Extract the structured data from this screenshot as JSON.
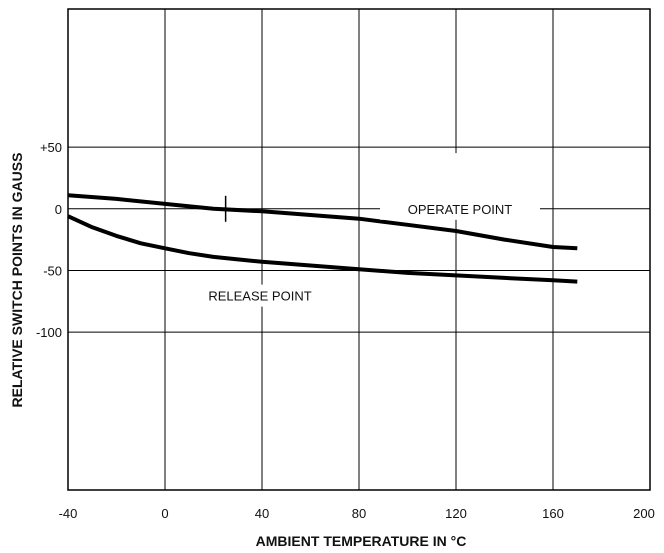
{
  "chart_data": {
    "type": "line",
    "title": "",
    "xlabel": "AMBIENT TEMPERATURE IN °C",
    "ylabel": "RELATIVE SWITCH POINTS IN GAUSS",
    "xlim": [
      -40,
      200
    ],
    "ylim": [
      -228,
      162
    ],
    "grid": true,
    "x_ticks": [
      -40,
      0,
      40,
      80,
      120,
      160,
      200
    ],
    "x_tick_labels": [
      "-40",
      "0",
      "40",
      "80",
      "120",
      "160",
      "200"
    ],
    "y_ticks": [
      50,
      0,
      -50,
      -100
    ],
    "y_tick_labels": [
      "+50",
      "0",
      "-50",
      "-100"
    ],
    "series": [
      {
        "name": "OPERATE POINT",
        "x": [
          -40,
          -20,
          0,
          20,
          40,
          60,
          80,
          100,
          120,
          140,
          160,
          170
        ],
        "y": [
          11,
          8,
          4,
          0,
          -2,
          -5,
          -8,
          -13,
          -18,
          -25,
          -31,
          -32
        ]
      },
      {
        "name": "RELEASE POINT",
        "x": [
          -40,
          -30,
          -20,
          -10,
          0,
          10,
          20,
          30,
          40,
          60,
          80,
          100,
          120,
          140,
          160,
          170
        ],
        "y": [
          -6,
          -15,
          -22,
          -28,
          -32,
          -36,
          -39,
          -41,
          -43,
          -46,
          -49,
          -52,
          -54,
          -56,
          -58,
          -59
        ]
      }
    ],
    "annotations": {
      "operate_label": "OPERATE POINT",
      "release_label": "RELEASE POINT",
      "marker_x": 25
    }
  }
}
